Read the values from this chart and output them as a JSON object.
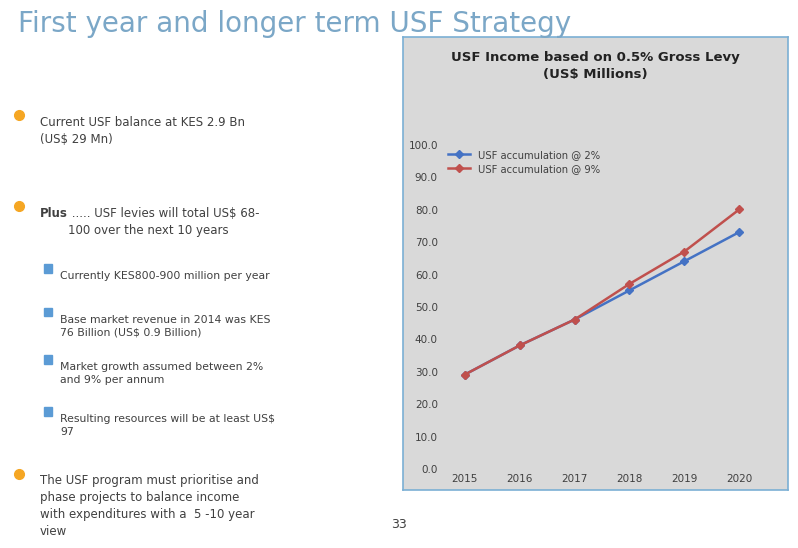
{
  "title": "First year and longer term USF Strategy",
  "title_color": "#7BA7C7",
  "title_fontsize": 20,
  "background_color": "#FFFFFF",
  "slide_number": "33",
  "bullet_color": "#F5A623",
  "sub_bullet_color": "#5B9BD5",
  "text_color": "#404040",
  "bullet1": "Current USF balance at KES 2.9 Bn\n(US$ 29 Mn)",
  "bullet2_bold": "Plus",
  "bullet2_rest": " ..... USF levies will total US$ 68-\n100 over the next 10 years",
  "sub_bullets": [
    "Currently KES800-900 million per year",
    "Base market revenue in 2014 was KES\n76 Billion (US$ 0.9 Billion)",
    "Market growth assumed between 2%\nand 9% per annum",
    "Resulting resources will be at least US$\n97"
  ],
  "bullet3": "The USF program must prioritise and\nphase projects to balance income\nwith expenditures with a  5 -10 year\nview",
  "chart_title_line1": "USF Income based on 0.5% Gross Levy",
  "chart_title_line2": "(US$ Millions)",
  "chart_title_fontsize": 9.5,
  "chart_bg_color": "#D9D9D9",
  "chart_border_color": "#7BAFD4",
  "years": [
    2015,
    2016,
    2017,
    2018,
    2019,
    2020
  ],
  "series_2pct": [
    29.0,
    38.0,
    46.0,
    55.0,
    64.0,
    73.0
  ],
  "series_9pct": [
    29.0,
    38.0,
    46.0,
    57.0,
    67.0,
    80.0
  ],
  "line_color_2pct": "#4472C4",
  "line_color_9pct": "#C0504D",
  "marker_style": "D",
  "marker_size": 4,
  "ylim": [
    0,
    100
  ],
  "yticks": [
    0.0,
    10.0,
    20.0,
    30.0,
    40.0,
    50.0,
    60.0,
    70.0,
    80.0,
    90.0,
    100.0
  ],
  "legend_2pct": "USF accumulation @ 2%",
  "legend_9pct": "USF accumulation @ 9%",
  "text_fontsize": 8.5,
  "sub_text_fontsize": 7.8
}
